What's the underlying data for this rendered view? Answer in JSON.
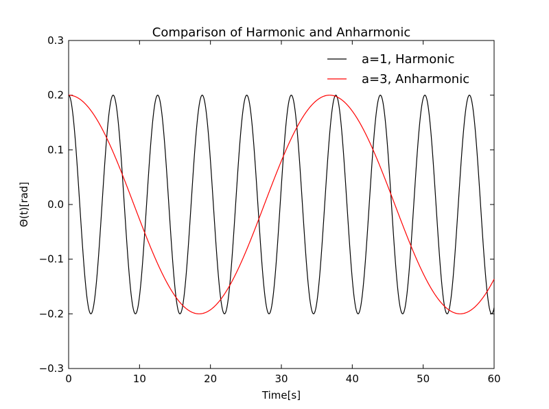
{
  "chart_data": {
    "type": "line",
    "title": "Comparison of Harmonic and Anharmonic",
    "xlabel": "Time[s]",
    "ylabel": "Θ(t)[rad]",
    "xlim": [
      0,
      60
    ],
    "ylim": [
      -0.3,
      0.3
    ],
    "xticks": [
      0,
      10,
      20,
      30,
      40,
      50,
      60
    ],
    "yticks": [
      -0.3,
      -0.2,
      -0.1,
      0.0,
      0.1,
      0.2,
      0.3
    ],
    "xtick_labels": [
      "0",
      "10",
      "20",
      "30",
      "40",
      "50",
      "60"
    ],
    "ytick_labels": [
      "−0.3",
      "−0.2",
      "−0.1",
      "0.0",
      "0.1",
      "0.2",
      "0.3"
    ],
    "grid": false,
    "legend_position": "top-right",
    "series": [
      {
        "name": "a=1, Harmonic",
        "color": "#000000",
        "amplitude": 0.2,
        "period": 6.28,
        "x": [
          0,
          3.14,
          6.28,
          9.42,
          12.56,
          15.7,
          18.84,
          21.98,
          25.12,
          28.26,
          31.4,
          34.54,
          37.68,
          40.82,
          43.96,
          47.1,
          50.24,
          53.38,
          56.52,
          59.66
        ],
        "y": [
          0.2,
          -0.2,
          0.2,
          -0.2,
          0.2,
          -0.2,
          0.2,
          -0.2,
          0.2,
          -0.2,
          0.2,
          -0.2,
          0.2,
          -0.2,
          0.2,
          -0.2,
          0.2,
          -0.2,
          0.2,
          -0.2
        ]
      },
      {
        "name": "a=3, Anharmonic",
        "color": "#ff0000",
        "amplitude": 0.2,
        "period": 36.8,
        "x": [
          0,
          18.4,
          36.8,
          55.2
        ],
        "y": [
          0.2,
          -0.2,
          0.2,
          -0.2
        ]
      }
    ]
  }
}
